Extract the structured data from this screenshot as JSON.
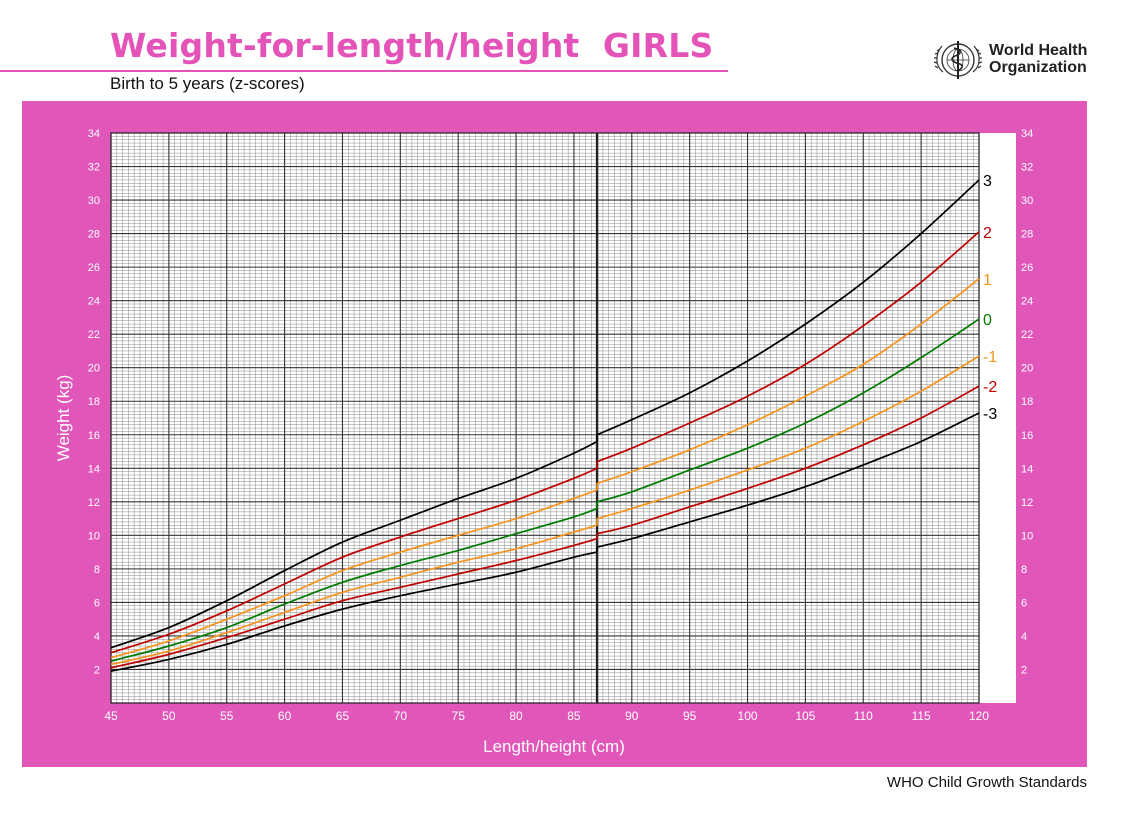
{
  "header": {
    "title": "Weight-for-length/height  GIRLS",
    "subtitle": "Birth to 5 years (z-scores)"
  },
  "logo": {
    "icon": "who-emblem-icon",
    "line1": "World Health",
    "line2": "Organization"
  },
  "footer": {
    "text": "WHO Child Growth Standards"
  },
  "colors": {
    "brand": "#e353b8",
    "panel": "#e056b9",
    "sd3": "#000000",
    "sd2": "#c00000",
    "sd1": "#f7941d",
    "median": "#007a00"
  },
  "chart_data": {
    "type": "line",
    "title": "Weight-for-length/height  GIRLS",
    "subtitle": "Birth to 5 years (z-scores)",
    "xlabel": "Length/height (cm)",
    "ylabel": "Weight (kg)",
    "xlim": [
      45,
      120
    ],
    "ylim": [
      0,
      34
    ],
    "length_to_height_switch_cm": 87,
    "x_ticks": [
      45,
      50,
      55,
      60,
      65,
      70,
      75,
      80,
      85,
      90,
      95,
      100,
      105,
      110,
      115,
      120
    ],
    "y_ticks": [
      2,
      4,
      6,
      8,
      10,
      12,
      14,
      16,
      18,
      20,
      22,
      24,
      26,
      28,
      30,
      32,
      34
    ],
    "grid": true,
    "series": [
      {
        "name": "3",
        "label": "3",
        "color": "#000000",
        "length": {
          "x": [
            45,
            50,
            55,
            60,
            65,
            70,
            75,
            80,
            85,
            87
          ],
          "y": [
            3.3,
            4.5,
            6.1,
            7.9,
            9.6,
            10.9,
            12.2,
            13.4,
            14.9,
            15.6
          ]
        },
        "height": {
          "x": [
            87,
            90,
            95,
            100,
            105,
            110,
            115,
            120
          ],
          "y": [
            16.0,
            16.9,
            18.5,
            20.4,
            22.6,
            25.1,
            28.0,
            31.2
          ]
        }
      },
      {
        "name": "2",
        "label": "2",
        "color": "#c00000",
        "length": {
          "x": [
            45,
            50,
            55,
            60,
            65,
            70,
            75,
            80,
            85,
            87
          ],
          "y": [
            3.0,
            4.1,
            5.5,
            7.1,
            8.7,
            9.9,
            11.0,
            12.1,
            13.4,
            14.0
          ]
        },
        "height": {
          "x": [
            87,
            90,
            95,
            100,
            105,
            110,
            115,
            120
          ],
          "y": [
            14.4,
            15.2,
            16.7,
            18.3,
            20.2,
            22.5,
            25.1,
            28.1
          ]
        }
      },
      {
        "name": "1",
        "label": "1",
        "color": "#f7941d",
        "length": {
          "x": [
            45,
            50,
            55,
            60,
            65,
            70,
            75,
            80,
            85,
            87
          ],
          "y": [
            2.7,
            3.7,
            5.0,
            6.4,
            7.9,
            9.0,
            10.0,
            11.0,
            12.2,
            12.7
          ]
        },
        "height": {
          "x": [
            87,
            90,
            95,
            100,
            105,
            110,
            115,
            120
          ],
          "y": [
            13.1,
            13.8,
            15.1,
            16.6,
            18.3,
            20.2,
            22.6,
            25.3
          ]
        }
      },
      {
        "name": "0",
        "label": "0",
        "color": "#007a00",
        "length": {
          "x": [
            45,
            50,
            55,
            60,
            65,
            70,
            75,
            80,
            85,
            87
          ],
          "y": [
            2.5,
            3.4,
            4.5,
            5.9,
            7.2,
            8.2,
            9.1,
            10.1,
            11.1,
            11.6
          ]
        },
        "height": {
          "x": [
            87,
            90,
            95,
            100,
            105,
            110,
            115,
            120
          ],
          "y": [
            12.0,
            12.6,
            13.9,
            15.2,
            16.7,
            18.5,
            20.6,
            22.9
          ]
        }
      },
      {
        "name": "-1",
        "label": "-1",
        "color": "#f7941d",
        "length": {
          "x": [
            45,
            50,
            55,
            60,
            65,
            70,
            75,
            80,
            85,
            87
          ],
          "y": [
            2.3,
            3.1,
            4.2,
            5.4,
            6.6,
            7.5,
            8.4,
            9.2,
            10.2,
            10.6
          ]
        },
        "height": {
          "x": [
            87,
            90,
            95,
            100,
            105,
            110,
            115,
            120
          ],
          "y": [
            11.0,
            11.6,
            12.7,
            13.9,
            15.2,
            16.8,
            18.6,
            20.7
          ]
        }
      },
      {
        "name": "-2",
        "label": "-2",
        "color": "#c00000",
        "length": {
          "x": [
            45,
            50,
            55,
            60,
            65,
            70,
            75,
            80,
            85,
            87
          ],
          "y": [
            2.1,
            2.9,
            3.9,
            5.0,
            6.1,
            6.9,
            7.7,
            8.5,
            9.4,
            9.8
          ]
        },
        "height": {
          "x": [
            87,
            90,
            95,
            100,
            105,
            110,
            115,
            120
          ],
          "y": [
            10.1,
            10.6,
            11.7,
            12.8,
            14.0,
            15.4,
            17.0,
            18.9
          ]
        }
      },
      {
        "name": "-3",
        "label": "-3",
        "color": "#000000",
        "length": {
          "x": [
            45,
            50,
            55,
            60,
            65,
            70,
            75,
            80,
            85,
            87
          ],
          "y": [
            1.9,
            2.6,
            3.5,
            4.6,
            5.6,
            6.4,
            7.1,
            7.8,
            8.7,
            9.0
          ]
        },
        "height": {
          "x": [
            87,
            90,
            95,
            100,
            105,
            110,
            115,
            120
          ],
          "y": [
            9.3,
            9.8,
            10.8,
            11.8,
            12.9,
            14.2,
            15.6,
            17.3
          ]
        }
      }
    ]
  }
}
